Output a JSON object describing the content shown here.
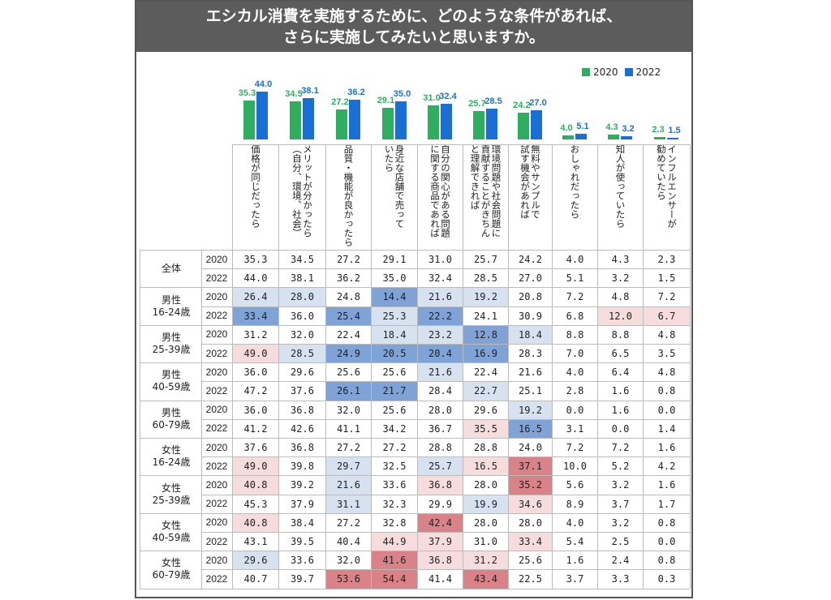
{
  "title": {
    "line1": "エシカル消費を実施するために、どのような条件があれば、",
    "line2": "さらに実施してみたいと思いますか。"
  },
  "colors": {
    "series_2020": "#2eaf5f",
    "series_2022": "#1a6fd6",
    "title_bg": "#5c5c5c"
  },
  "chart_data": {
    "type": "bar",
    "categories": [
      "価格が同じだったら",
      "メリットが分かったら（自分、環境、社会）",
      "品質・機能が良かったら",
      "身近な店舗で売っていたら",
      "自分の関心がある問題に関する商品であれば",
      "環境問題や社会問題に貢献することがきちんと理解できれば",
      "無料やサンプルで試す機会があれば",
      "おしゃれだったら",
      "知人が使っていたら",
      "インフルエンサーが勧めていたら"
    ],
    "category_lines": [
      [
        "価格が同じだったら"
      ],
      [
        "メリットが分かったら",
        "（自分、環境、社会）"
      ],
      [
        "品質・機能が良かったら"
      ],
      [
        "身近な店舗で売って",
        "いたら"
      ],
      [
        "自分の関心がある問題",
        "に関する商品であれば"
      ],
      [
        "環境問題や社会問題に",
        "貢献することがきちん",
        "と理解できれば"
      ],
      [
        "無料やサンプルで",
        "試す機会があれば"
      ],
      [
        "おしゃれだったら"
      ],
      [
        "知人が使っていたら"
      ],
      [
        "インフルエンサーが",
        "勧めていたら"
      ]
    ],
    "series": [
      {
        "name": "2020",
        "values": [
          35.3,
          34.5,
          27.2,
          29.1,
          31.0,
          25.7,
          24.2,
          4.0,
          4.3,
          2.3
        ]
      },
      {
        "name": "2022",
        "values": [
          44.0,
          38.1,
          36.2,
          35.0,
          32.4,
          28.5,
          27.0,
          5.1,
          3.2,
          1.5
        ]
      }
    ],
    "value_labels": [
      [
        "35.3",
        "44.0"
      ],
      [
        "34.5",
        "38.1"
      ],
      [
        "27.2",
        "36.2"
      ],
      [
        "29.1",
        "35.0"
      ],
      [
        "31.0",
        "32.4"
      ],
      [
        "25.7",
        "28.5"
      ],
      [
        "24.2",
        "27.0"
      ],
      [
        "4.0",
        "5.1"
      ],
      [
        "4.3",
        "3.2"
      ],
      [
        "2.3",
        "1.5"
      ]
    ],
    "legend": [
      "2020",
      "2022"
    ],
    "legend_position": "top-right"
  },
  "table": {
    "groups": [
      {
        "label": [
          "全体"
        ],
        "rows": [
          {
            "year": "2020",
            "values": [
              "35.3",
              "34.5",
              "27.2",
              "29.1",
              "31.0",
              "25.7",
              "24.2",
              "4.0",
              "4.3",
              "2.3"
            ],
            "shade": [
              0,
              0,
              0,
              0,
              0,
              0,
              0,
              0,
              0,
              0
            ]
          },
          {
            "year": "2022",
            "values": [
              "44.0",
              "38.1",
              "36.2",
              "35.0",
              "32.4",
              "28.5",
              "27.0",
              "5.1",
              "3.2",
              "1.5"
            ],
            "shade": [
              0,
              0,
              0,
              0,
              0,
              0,
              0,
              0,
              0,
              0
            ]
          }
        ]
      },
      {
        "label": [
          "男性",
          "16-24歳"
        ],
        "rows": [
          {
            "year": "2020",
            "values": [
              "26.4",
              "28.0",
              "24.8",
              "14.4",
              "21.6",
              "19.2",
              "20.8",
              "7.2",
              "4.8",
              "7.2"
            ],
            "shade": [
              -1,
              -1,
              0,
              -2,
              -1,
              -1,
              0,
              0,
              0,
              0
            ]
          },
          {
            "year": "2022",
            "values": [
              "33.4",
              "36.0",
              "25.4",
              "25.3",
              "22.2",
              "24.1",
              "30.9",
              "6.8",
              "12.0",
              "6.7"
            ],
            "shade": [
              -2,
              0,
              -2,
              -1,
              -2,
              0,
              0,
              0,
              1,
              1
            ]
          }
        ]
      },
      {
        "label": [
          "男性",
          "25-39歳"
        ],
        "rows": [
          {
            "year": "2020",
            "values": [
              "31.2",
              "32.0",
              "22.4",
              "18.4",
              "23.2",
              "12.8",
              "18.4",
              "8.8",
              "8.8",
              "4.8"
            ],
            "shade": [
              0,
              0,
              0,
              -1,
              -1,
              -2,
              -1,
              0,
              0,
              0
            ]
          },
          {
            "year": "2022",
            "values": [
              "49.0",
              "28.5",
              "24.9",
              "20.5",
              "20.4",
              "16.9",
              "28.3",
              "7.0",
              "6.5",
              "3.5"
            ],
            "shade": [
              1,
              -1,
              -2,
              -2,
              -2,
              -2,
              0,
              0,
              0,
              0
            ]
          }
        ]
      },
      {
        "label": [
          "男性",
          "40-59歳"
        ],
        "rows": [
          {
            "year": "2020",
            "values": [
              "36.0",
              "29.6",
              "25.6",
              "25.6",
              "21.6",
              "22.4",
              "21.6",
              "4.0",
              "6.4",
              "4.8"
            ],
            "shade": [
              0,
              0,
              0,
              0,
              -1,
              0,
              0,
              0,
              0,
              0
            ]
          },
          {
            "year": "2022",
            "values": [
              "47.2",
              "37.6",
              "26.1",
              "21.7",
              "28.4",
              "22.7",
              "25.1",
              "2.8",
              "1.6",
              "0.8"
            ],
            "shade": [
              0,
              0,
              -2,
              -2,
              0,
              -1,
              0,
              0,
              0,
              0
            ]
          }
        ]
      },
      {
        "label": [
          "男性",
          "60-79歳"
        ],
        "rows": [
          {
            "year": "2020",
            "values": [
              "36.0",
              "36.8",
              "32.0",
              "25.6",
              "28.0",
              "29.6",
              "19.2",
              "0.0",
              "1.6",
              "0.0"
            ],
            "shade": [
              0,
              0,
              0,
              0,
              0,
              0,
              -1,
              0,
              0,
              0
            ]
          },
          {
            "year": "2022",
            "values": [
              "41.2",
              "42.6",
              "41.1",
              "34.2",
              "36.7",
              "35.5",
              "16.5",
              "3.1",
              "0.0",
              "1.4"
            ],
            "shade": [
              0,
              0,
              0,
              0,
              0,
              1,
              -2,
              0,
              0,
              0
            ]
          }
        ]
      },
      {
        "label": [
          "女性",
          "16-24歳"
        ],
        "rows": [
          {
            "year": "2020",
            "values": [
              "37.6",
              "36.8",
              "27.2",
              "27.2",
              "28.8",
              "28.8",
              "24.0",
              "7.2",
              "7.2",
              "1.6"
            ],
            "shade": [
              0,
              0,
              0,
              0,
              0,
              0,
              0,
              0,
              0,
              0
            ]
          },
          {
            "year": "2022",
            "values": [
              "49.0",
              "39.8",
              "29.7",
              "32.5",
              "25.7",
              "16.5",
              "37.1",
              "10.0",
              "5.2",
              "4.2"
            ],
            "shade": [
              1,
              0,
              -1,
              0,
              -1,
              1,
              2,
              0,
              0,
              0
            ]
          }
        ]
      },
      {
        "label": [
          "女性",
          "25-39歳"
        ],
        "rows": [
          {
            "year": "2020",
            "values": [
              "40.8",
              "39.2",
              "21.6",
              "33.6",
              "36.8",
              "28.0",
              "35.2",
              "5.6",
              "3.2",
              "1.6"
            ],
            "shade": [
              1,
              0,
              -1,
              0,
              1,
              0,
              2,
              0,
              0,
              0
            ]
          },
          {
            "year": "2022",
            "values": [
              "45.3",
              "37.9",
              "31.1",
              "32.3",
              "29.9",
              "19.9",
              "34.6",
              "8.9",
              "3.7",
              "1.7"
            ],
            "shade": [
              0,
              0,
              -1,
              0,
              0,
              -1,
              1,
              0,
              0,
              0
            ]
          }
        ]
      },
      {
        "label": [
          "女性",
          "40-59歳"
        ],
        "rows": [
          {
            "year": "2020",
            "values": [
              "40.8",
              "38.4",
              "27.2",
              "32.8",
              "42.4",
              "28.0",
              "28.0",
              "4.0",
              "3.2",
              "0.8"
            ],
            "shade": [
              1,
              0,
              0,
              0,
              2,
              0,
              0,
              0,
              0,
              0
            ]
          },
          {
            "year": "2022",
            "values": [
              "43.1",
              "39.5",
              "40.4",
              "44.9",
              "37.9",
              "31.0",
              "33.4",
              "5.4",
              "2.5",
              "0.0"
            ],
            "shade": [
              0,
              0,
              0,
              1,
              1,
              0,
              1,
              0,
              0,
              0
            ]
          }
        ]
      },
      {
        "label": [
          "女性",
          "60-79歳"
        ],
        "rows": [
          {
            "year": "2020",
            "values": [
              "29.6",
              "33.6",
              "32.0",
              "41.6",
              "36.8",
              "31.2",
              "25.6",
              "1.6",
              "2.4",
              "0.8"
            ],
            "shade": [
              -1,
              0,
              0,
              2,
              1,
              1,
              0,
              0,
              0,
              0
            ]
          },
          {
            "year": "2022",
            "values": [
              "40.7",
              "39.7",
              "53.6",
              "54.4",
              "41.4",
              "43.4",
              "22.5",
              "3.7",
              "3.3",
              "0.3"
            ],
            "shade": [
              0,
              0,
              2,
              2,
              0,
              2,
              0,
              0,
              0,
              0
            ]
          }
        ]
      }
    ]
  }
}
